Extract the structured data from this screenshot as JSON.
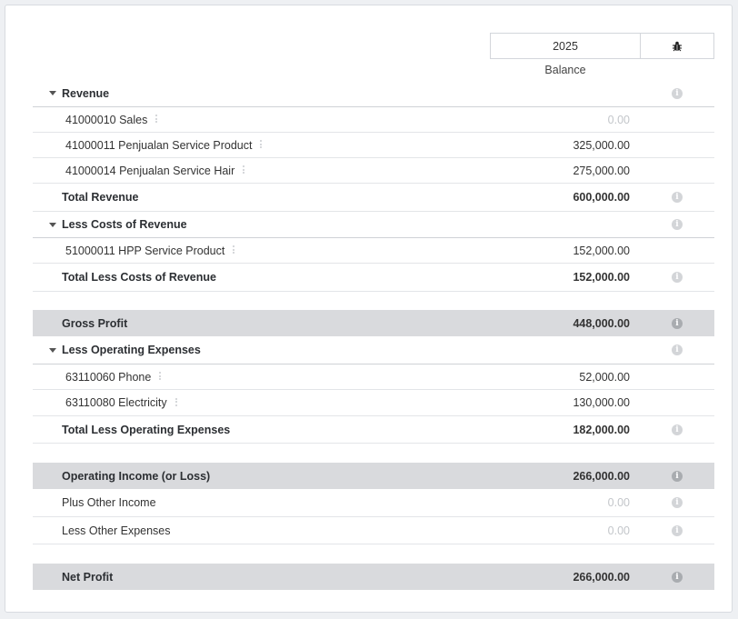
{
  "header": {
    "year": "2025",
    "column_label": "Balance",
    "bug_icon": "bug-icon"
  },
  "sections": {
    "revenue": {
      "title": "Revenue",
      "items": [
        {
          "label": "41000010 Sales",
          "value": "0.00"
        },
        {
          "label": "41000011 Penjualan Service Product",
          "value": "325,000.00"
        },
        {
          "label": "41000014 Penjualan Service Hair",
          "value": "275,000.00"
        }
      ],
      "total_label": "Total Revenue",
      "total_value": "600,000.00"
    },
    "cost_of_revenue": {
      "title": "Less Costs of Revenue",
      "items": [
        {
          "label": "51000011 HPP Service Product",
          "value": "152,000.00"
        }
      ],
      "total_label": "Total Less Costs of Revenue",
      "total_value": "152,000.00"
    },
    "gross_profit": {
      "label": "Gross Profit",
      "value": "448,000.00"
    },
    "operating_expenses": {
      "title": "Less Operating Expenses",
      "items": [
        {
          "label": "63110060 Phone",
          "value": "52,000.00"
        },
        {
          "label": "63110080 Electricity",
          "value": "130,000.00"
        }
      ],
      "total_label": "Total Less Operating Expenses",
      "total_value": "182,000.00"
    },
    "operating_income": {
      "label": "Operating Income (or Loss)",
      "value": "266,000.00"
    },
    "other_income": {
      "label": "Plus Other Income",
      "value": "0.00"
    },
    "other_expenses": {
      "label": "Less Other Expenses",
      "value": "0.00"
    },
    "net_profit": {
      "label": "Net Profit",
      "value": "266,000.00"
    }
  },
  "colors": {
    "shaded_row": "#d9dadd",
    "muted_value": "#c3c6ca",
    "info_icon": "#d3d5d8"
  }
}
